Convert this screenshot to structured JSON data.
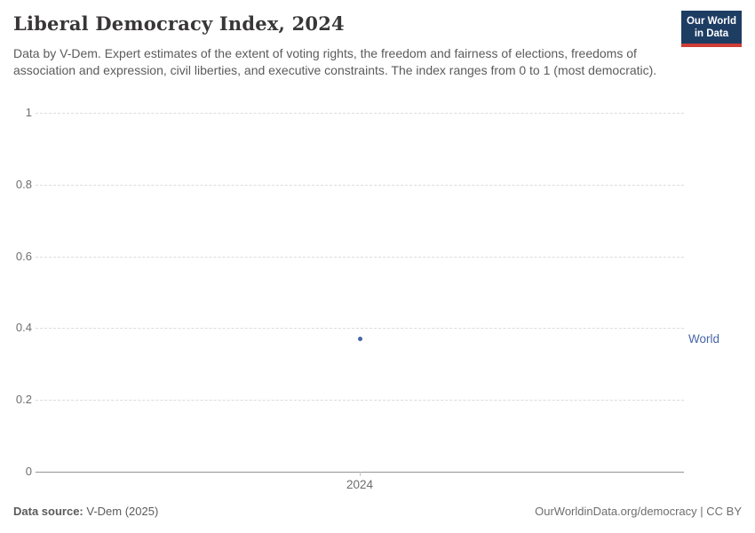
{
  "header": {
    "title": "Liberal Democracy Index, 2024",
    "subtitle": "Data by V-Dem. Expert estimates of the extent of voting rights, the freedom and fairness of elections, freedoms of association and expression, civil liberties, and executive constraints. The index ranges from 0 to 1 (most democratic).",
    "logo": {
      "line1": "Our World",
      "line2": "in Data"
    }
  },
  "colors": {
    "series_blue": "#4766A8",
    "logo_navy": "#1d3d63",
    "logo_red": "#cf3e36",
    "gridline": "#dcdcdc",
    "axis": "#949494",
    "tick_text": "#6e6e6e",
    "subtitle_text": "#5b5b5b"
  },
  "chart_data": {
    "type": "scatter",
    "title": "Liberal Democracy Index, 2024",
    "x": [
      2024
    ],
    "xticks": [
      "2024"
    ],
    "series": [
      {
        "name": "World",
        "values": [
          0.37
        ],
        "color": "#4766A8"
      }
    ],
    "ylim": [
      0,
      1
    ],
    "yticks": [
      0,
      0.2,
      0.4,
      0.6,
      0.8,
      1
    ],
    "grid": "horizontal-dashed",
    "legend_position": "right-of-plot",
    "xlabel": "",
    "ylabel": ""
  },
  "footer": {
    "source_label": "Data source:",
    "source_value": "V-Dem (2025)",
    "credit": "OurWorldinData.org/democracy | CC BY"
  }
}
